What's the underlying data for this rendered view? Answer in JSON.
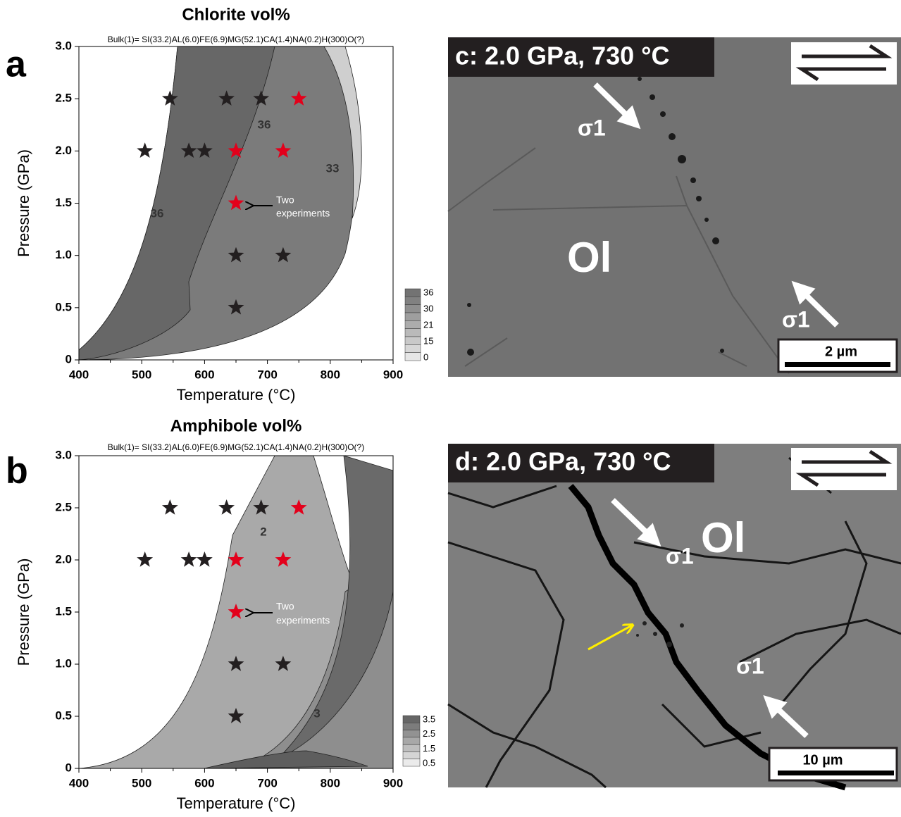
{
  "chart_data": [
    {
      "type": "scatter",
      "panel": "a",
      "title": "Chlorite vol%",
      "subtitle": "Bulk(1)= SI(33.2)AL(6.0)FE(6.9)MG(52.1)CA(1.4)NA(0.2)H(300)O(?)",
      "x_label": "Temperature (°C)",
      "y_label": "Pressure (GPa)",
      "xlim": [
        400,
        900
      ],
      "ylim": [
        0,
        3.0
      ],
      "xticks": [
        400,
        500,
        600,
        700,
        800,
        900
      ],
      "yticks": [
        0,
        0.5,
        {
          "value": 1,
          "label": "1.0"
        },
        1.5,
        {
          "value": 2,
          "label": "2.0"
        },
        2.5,
        {
          "value": 3,
          "label": "3.0"
        }
      ],
      "series": [
        {
          "color": "#231f20",
          "x": [
            545,
            635,
            690,
            505,
            575,
            600,
            650,
            725,
            650
          ],
          "y": [
            2.5,
            2.5,
            2.5,
            2,
            2,
            2,
            1,
            1,
            0.5
          ]
        },
        {
          "color": "#e3001b",
          "x": [
            750,
            650,
            725,
            650
          ],
          "y": [
            2.5,
            2,
            2,
            1.5
          ]
        }
      ],
      "annotations": [
        "36",
        "36",
        "33",
        "Two",
        "experiments"
      ],
      "colorbar": {
        "ticks": [
          36,
          30,
          21,
          15,
          0
        ]
      }
    },
    {
      "type": "scatter",
      "panel": "b",
      "title": "Amphibole vol%",
      "subtitle": "Bulk(1)= SI(33.2)AL(6.0)FE(6.9)MG(52.1)CA(1.4)NA(0.2)H(300)O(?)",
      "x_label": "Temperature (°C)",
      "y_label": "Pressure (GPa)",
      "xlim": [
        400,
        900
      ],
      "ylim": [
        0,
        3.0
      ],
      "xticks": [
        400,
        500,
        600,
        700,
        800,
        900
      ],
      "yticks": [
        0,
        0.5,
        {
          "value": 1,
          "label": "1.0"
        },
        1.5,
        {
          "value": 2,
          "label": "2.0"
        },
        2.5,
        {
          "value": 3,
          "label": "3.0"
        }
      ],
      "series": [
        {
          "color": "#231f20",
          "x": [
            545,
            635,
            690,
            505,
            575,
            600,
            650,
            725,
            650
          ],
          "y": [
            2.5,
            2.5,
            2.5,
            2,
            2,
            2,
            1,
            1,
            0.5
          ]
        },
        {
          "color": "#e3001b",
          "x": [
            750,
            650,
            725,
            650
          ],
          "y": [
            2.5,
            2,
            2,
            1.5
          ]
        }
      ],
      "annotations": [
        "2",
        "3",
        "Two",
        "experiments"
      ],
      "colorbar": {
        "ticks": [
          3.5,
          2.5,
          1.5,
          0.5
        ]
      }
    }
  ],
  "panels": [
    {
      "label": "c: 2.0 GPa, 730 °C",
      "phase": "Ol",
      "stress": [
        "σ1",
        "σ1"
      ],
      "scale_bar": "2 µm"
    },
    {
      "label": "d: 2.0 GPa, 730 °C",
      "phase": "Ol",
      "stress": [
        "σ1",
        "σ1"
      ],
      "scale_bar": "10 µm"
    }
  ]
}
